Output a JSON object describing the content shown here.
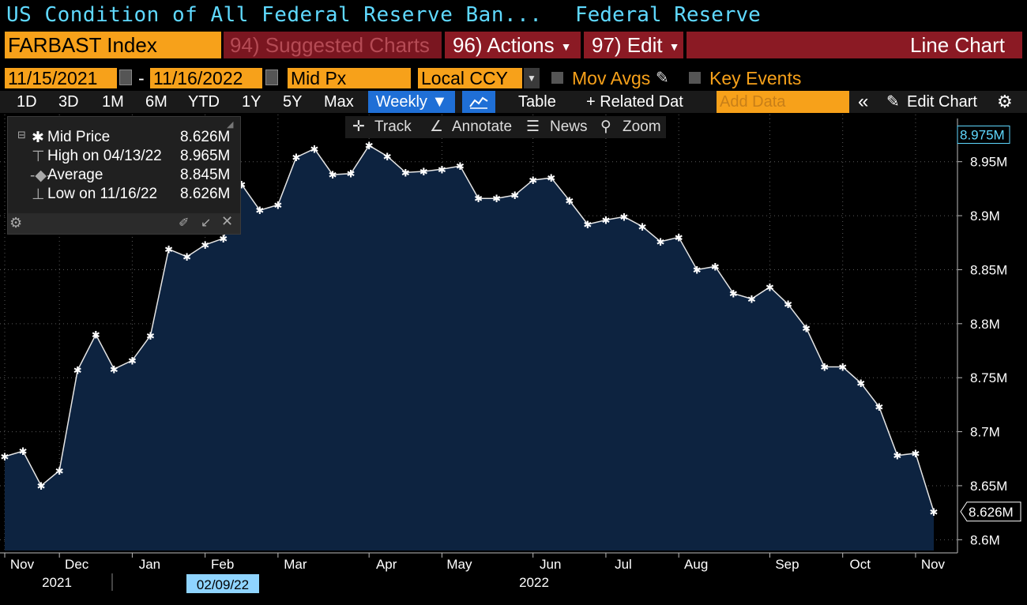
{
  "header": {
    "title": "US Condition of All Federal Reserve Ban...",
    "source": "Federal Reserve"
  },
  "command_bar": {
    "ticker": "FARBAST Index",
    "suggested_charts": "94) Suggested Charts",
    "actions": "96) Actions",
    "edit": "97) Edit",
    "chart_type": "Line Chart"
  },
  "date_range": {
    "start": "11/15/2021",
    "separator": "-",
    "end": "11/16/2022",
    "field": "Mid Px",
    "currency": "Local CCY",
    "mov_avgs": "Mov Avgs",
    "key_events": "Key Events"
  },
  "range_bar": {
    "periods": [
      "1D",
      "3D",
      "1M",
      "6M",
      "YTD",
      "1Y",
      "5Y",
      "Max"
    ],
    "frequency": "Weekly ▼",
    "table": "Table",
    "related_data": "+ Related Dat",
    "add_data_placeholder": "Add Data",
    "collapse": "«",
    "edit_chart": "Edit Chart"
  },
  "chart_toolbar": {
    "track": "Track",
    "annotate": "Annotate",
    "news": "News",
    "zoom": "Zoom"
  },
  "legend": {
    "rows": [
      {
        "label": "Mid Price",
        "value": "8.626M"
      },
      {
        "label": "High on 04/13/22",
        "value": "8.965M"
      },
      {
        "label": "Average",
        "value": "8.845M"
      },
      {
        "label": "Low on 11/16/22",
        "value": "8.626M"
      }
    ]
  },
  "crosshair_date": "02/09/22",
  "colors": {
    "orange": "#f7a11a",
    "red": "#8b1a24",
    "cyan": "#5fd9ff",
    "fill": "#0d2340",
    "blue": "#1f6fd6"
  },
  "chart_data": {
    "type": "area",
    "title": "FARBAST Index",
    "frequency": "Weekly",
    "unit": "M",
    "ylim": [
      8.59,
      8.99
    ],
    "y_ticks": [
      "8.6M",
      "8.65M",
      "8.7M",
      "8.75M",
      "8.8M",
      "8.85M",
      "8.9M",
      "8.95M"
    ],
    "y_tick_values": [
      8.6,
      8.65,
      8.7,
      8.75,
      8.8,
      8.85,
      8.9,
      8.95
    ],
    "x_ticks": [
      "Nov",
      "Dec",
      "Jan",
      "Feb",
      "Mar",
      "Apr",
      "May",
      "Jun",
      "Jul",
      "Aug",
      "Sep",
      "Oct",
      "Nov"
    ],
    "x_tick_index": [
      0,
      3,
      7,
      11,
      15,
      20,
      24,
      29,
      33,
      37,
      42,
      46,
      50
    ],
    "year_labels": [
      "2021",
      "2022"
    ],
    "last_value_label": "8.626M",
    "top_label": "8.975M",
    "grid": true,
    "values": [
      8.677,
      8.682,
      8.65,
      8.664,
      8.757,
      8.79,
      8.758,
      8.766,
      8.789,
      8.869,
      8.862,
      8.873,
      8.879,
      8.929,
      8.905,
      8.91,
      8.954,
      8.962,
      8.938,
      8.939,
      8.965,
      8.955,
      8.94,
      8.941,
      8.943,
      8.946,
      8.916,
      8.916,
      8.919,
      8.933,
      8.935,
      8.914,
      8.892,
      8.896,
      8.899,
      8.89,
      8.876,
      8.88,
      8.85,
      8.853,
      8.828,
      8.823,
      8.834,
      8.818,
      8.796,
      8.76,
      8.76,
      8.745,
      8.723,
      8.678,
      8.68,
      8.626
    ]
  }
}
